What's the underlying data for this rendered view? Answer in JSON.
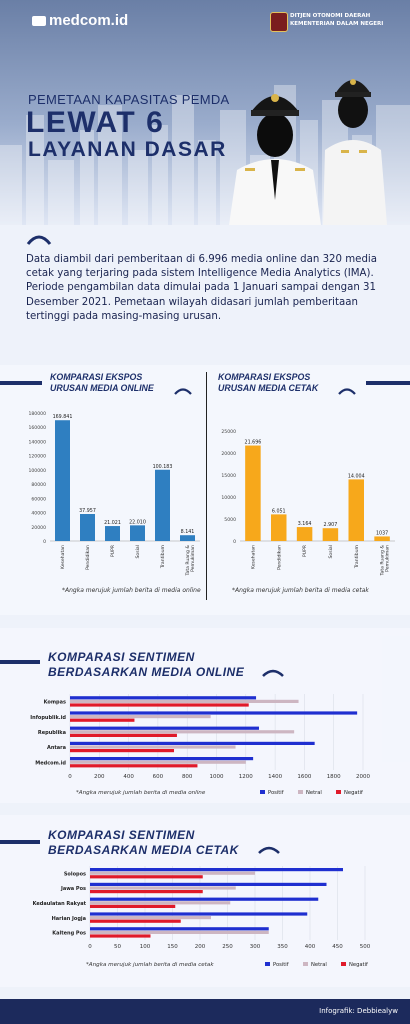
{
  "brand": "medcom.id",
  "org": {
    "line1": "DITJEN OTONOMI DAERAH",
    "line2": "KEMENTERIAN DALAM NEGERI"
  },
  "title": {
    "line1": "PEMETAAN KAPASITAS PEMDA",
    "line2": "LEWAT 6",
    "line3": "LAYANAN DASAR"
  },
  "intro": "Data diambil dari pemberitaan di 6.996 media online dan 320 media cetak yang terjaring pada sistem Intelligence Media Analytics (IMA). Periode pengambilan data dimulai pada 1 Januari sampai dengan 31 Desember 2021. Pemetaan wilayah didasari jumlah pemberitaan tertinggi pada masing-masing urusan.",
  "credit": "Infografik: Debbiealyw",
  "colors": {
    "blue": "#2f7fc1",
    "orange": "#f7a81b",
    "positif": "#1f2fd0",
    "netral": "#cdb6c2",
    "negatif": "#e01a2a",
    "navy": "#1d2f6a"
  },
  "chart_data": [
    {
      "type": "bar",
      "title": "KOMPARASI EKSPOS URUSAN MEDIA ONLINE",
      "title_lines": [
        "KOMPARASI EKSPOS",
        "URUSAN MEDIA ONLINE"
      ],
      "categories": [
        "Kesehatan",
        "Pendidikan",
        "PUPR",
        "Sosial",
        "Trantibum",
        "Tata Ruang & Pemukiman"
      ],
      "category_lines": [
        [
          "Kesehatan"
        ],
        [
          "Pendidikan"
        ],
        [
          "PUPR"
        ],
        [
          "Sosial"
        ],
        [
          "Trantibum"
        ],
        [
          "Tata Ruang &",
          "Pemukiman"
        ]
      ],
      "values": [
        169841,
        37957,
        21021,
        22010,
        100183,
        8141
      ],
      "value_labels": [
        "169.841",
        "37.957",
        "21.021",
        "22.010",
        "100.183",
        "8.141"
      ],
      "ylim": [
        0,
        180000
      ],
      "yticks": [
        0,
        20000,
        40000,
        60000,
        80000,
        100000,
        120000,
        140000,
        160000,
        180000
      ],
      "note": "*Angka merujuk jumlah berita di media online"
    },
    {
      "type": "bar",
      "title": "KOMPARASI EKSPOS URUSAN MEDIA CETAK",
      "title_lines": [
        "KOMPARASI EKSPOS",
        "URUSAN MEDIA CETAK"
      ],
      "categories": [
        "Kesehatan",
        "Pendidikan",
        "PUPR",
        "Sosial",
        "Trantibum",
        "Tata Ruang & Pemukiman"
      ],
      "category_lines": [
        [
          "Kesehatan"
        ],
        [
          "Pendidikan"
        ],
        [
          "PUPR"
        ],
        [
          "Sosial"
        ],
        [
          "Trantibum"
        ],
        [
          "Tata Ruang &",
          "Pemukiman"
        ]
      ],
      "values": [
        21696,
        6051,
        3164,
        2907,
        14004,
        1037
      ],
      "value_labels": [
        "21.696",
        "6.051",
        "3.164",
        "2.907",
        "14.004",
        "1037"
      ],
      "ylim": [
        0,
        25000
      ],
      "yticks": [
        0,
        5000,
        10000,
        15000,
        20000,
        25000
      ],
      "note": "*Angka merujuk jumlah berita di media cetak"
    },
    {
      "type": "bar",
      "orientation": "horizontal",
      "title": "KOMPARASI SENTIMEN BERDASARKAN MEDIA ONLINE",
      "title_lines": [
        "KOMPARASI SENTIMEN",
        "BERDASARKAN MEDIA ONLINE"
      ],
      "categories": [
        "Kompas",
        "Infopublik.id",
        "Republika",
        "Antara",
        "Medcom.id"
      ],
      "series": [
        {
          "name": "Positif",
          "values": [
            1270,
            1960,
            1290,
            1670,
            1250
          ]
        },
        {
          "name": "Netral",
          "values": [
            1560,
            960,
            1530,
            1130,
            1200
          ]
        },
        {
          "name": "Negatif",
          "values": [
            1220,
            440,
            730,
            710,
            870
          ]
        }
      ],
      "xlim": [
        0,
        2000
      ],
      "xticks": [
        0,
        200,
        400,
        600,
        800,
        1000,
        1200,
        1400,
        1600,
        1800,
        2000
      ],
      "legend": "bottom-right",
      "note": "*Angka merujuk jumlah berita di media online"
    },
    {
      "type": "bar",
      "orientation": "horizontal",
      "title": "KOMPARASI SENTIMEN BERDASARKAN MEDIA CETAK",
      "title_lines": [
        "KOMPARASI SENTIMEN",
        "BERDASARKAN MEDIA CETAK"
      ],
      "categories": [
        "Solopos",
        "Jawa Pos",
        "Kedaulatan Rakyat",
        "Harian Jogja",
        "Kalteng Pos"
      ],
      "series": [
        {
          "name": "Positif",
          "values": [
            460,
            430,
            415,
            395,
            325
          ]
        },
        {
          "name": "Netral",
          "values": [
            300,
            265,
            255,
            220,
            325
          ]
        },
        {
          "name": "Negatif",
          "values": [
            205,
            205,
            155,
            165,
            110
          ]
        }
      ],
      "xlim": [
        0,
        500
      ],
      "xticks": [
        0,
        50,
        100,
        150,
        200,
        250,
        300,
        350,
        400,
        450,
        500
      ],
      "legend": "bottom-right",
      "note": "*Angka merujuk jumlah berita di media cetak"
    }
  ]
}
